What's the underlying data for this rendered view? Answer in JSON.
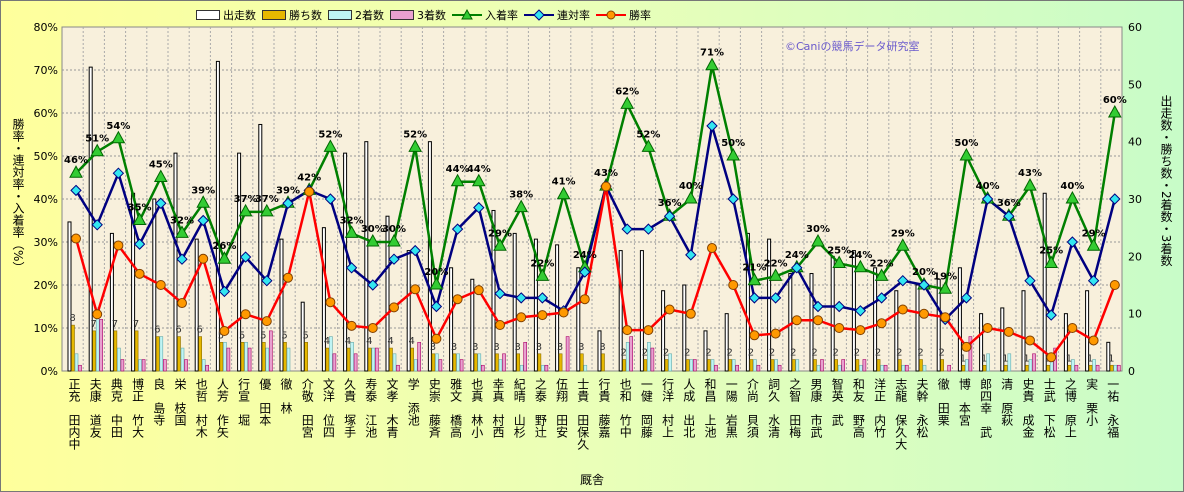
{
  "chart_data": {
    "type": "bar+line",
    "xlabel": "厩舎",
    "ylabel_left": "勝率・連対率・入着率（%）",
    "ylabel_right": "出走数・勝ち数・2着数・3着数",
    "ylim_left": [
      0,
      80
    ],
    "ylim_right": [
      0,
      60
    ],
    "yticks_left": [
      "0%",
      "10%",
      "20%",
      "30%",
      "40%",
      "50%",
      "60%",
      "70%",
      "80%"
    ],
    "yticks_right": [
      "0",
      "10",
      "20",
      "30",
      "40",
      "50",
      "60"
    ],
    "legend": [
      "出走数",
      "勝ち数",
      "2着数",
      "3着数",
      "入着率",
      "連対率",
      "勝率"
    ],
    "legend_position": "top",
    "grid": true,
    "annotation": "©Caniの競馬データ研究室",
    "categories": [
      "中内田 充正",
      "友道 康夫",
      "田中 克典",
      "大竹 正博",
      "寺島 良",
      "国枝 栄",
      "木村 哲也",
      "矢作 芳人",
      "堀 宣行",
      "本田 優",
      "林 徹",
      "宮田 敬介",
      "四位 洋文",
      "手塚 貴久",
      "池江 泰寿",
      "青木 孝文",
      "池添 学",
      "斉藤 崇史",
      "高橋 文雅",
      "小林 真也",
      "西村 真幸",
      "杉山 晴紀",
      "辻野 泰之",
      "安田 翔伍",
      "久保田 貴士",
      "嘉藤 貴行",
      "中竹 和也",
      "藤岡 健一",
      "上村 洋行",
      "北出 成人",
      "池上 昌和",
      "黒岩 陽一",
      "須貝 尚介",
      "清水 久詞",
      "梅田 智之",
      "武市 康男",
      "武 英智",
      "高野 友和",
      "竹内 正洋",
      "大久保 龍志",
      "松永 幹夫",
      "栗田 徹",
      "宮本 博",
      "武 幸四郎",
      "萩原 清",
      "金成 貴史",
      "松下 武士",
      "上原 博之",
      "小栗 実",
      "福永 祐一"
    ],
    "series": [
      {
        "name": "出走数",
        "axis": "right",
        "type": "bar",
        "color": "#ffffff",
        "values": [
          26,
          53,
          24,
          31,
          30,
          38,
          23,
          54,
          38,
          43,
          23,
          12,
          25,
          38,
          40,
          27,
          21,
          40,
          18,
          16,
          28,
          24,
          23,
          22,
          18,
          7,
          21,
          21,
          14,
          15,
          7,
          10,
          24,
          23,
          17,
          17,
          20,
          21,
          18,
          14,
          15,
          16,
          18,
          10,
          11,
          14,
          31,
          10,
          14,
          5
        ]
      },
      {
        "name": "勝ち数",
        "axis": "right",
        "type": "bar",
        "color": "#e6b800",
        "values": [
          8,
          7,
          7,
          7,
          6,
          6,
          6,
          5,
          5,
          5,
          5,
          5,
          4,
          4,
          4,
          4,
          4,
          3,
          3,
          3,
          3,
          3,
          3,
          3,
          3,
          3,
          2,
          2,
          2,
          2,
          2,
          2,
          2,
          2,
          2,
          2,
          2,
          2,
          2,
          2,
          2,
          2,
          1,
          1,
          1,
          1,
          1,
          1,
          1,
          1
        ]
      },
      {
        "name": "2着数",
        "axis": "right",
        "type": "bar",
        "color": "#bff4f4",
        "values": [
          3,
          11,
          4,
          2,
          6,
          4,
          2,
          5,
          5,
          4,
          4,
          0,
          6,
          5,
          4,
          3,
          2,
          3,
          3,
          3,
          2,
          1,
          1,
          0,
          1,
          0,
          5,
          5,
          3,
          2,
          2,
          2,
          2,
          2,
          2,
          1,
          1,
          1,
          1,
          1,
          1,
          0,
          2,
          3,
          3,
          2,
          3,
          2,
          2,
          1
        ]
      },
      {
        "name": "3着数",
        "axis": "right",
        "type": "bar",
        "color": "#e8a0d0",
        "values": [
          1,
          9,
          2,
          2,
          2,
          2,
          1,
          4,
          4,
          7,
          0,
          0,
          3,
          3,
          4,
          1,
          5,
          2,
          2,
          1,
          3,
          5,
          1,
          6,
          0,
          0,
          6,
          4,
          0,
          2,
          1,
          1,
          1,
          1,
          0,
          2,
          2,
          2,
          1,
          1,
          0,
          1,
          6,
          0,
          0,
          3,
          4,
          1,
          1,
          1
        ]
      },
      {
        "name": "入着率",
        "axis": "left",
        "type": "line",
        "color": "#008000",
        "values": [
          46,
          51,
          54,
          35,
          45,
          32,
          39,
          26,
          37,
          37,
          39,
          42,
          52,
          32,
          30,
          30,
          52,
          20,
          44,
          44,
          29,
          38,
          22,
          41,
          24,
          43,
          62,
          52,
          36,
          40,
          71,
          50,
          21,
          22,
          24,
          30,
          25,
          24,
          22,
          29,
          20,
          19,
          50,
          40,
          36,
          43,
          25,
          40,
          29,
          60
        ]
      },
      {
        "name": "連対率",
        "axis": "left",
        "type": "line",
        "color": "#000080",
        "values": [
          42,
          34,
          46,
          29.5,
          39,
          26,
          35,
          18.5,
          26.5,
          21,
          39,
          42,
          40,
          24,
          20,
          26,
          28,
          15,
          33,
          38,
          18,
          17,
          17,
          14,
          23,
          43,
          33,
          33,
          36,
          27,
          57,
          40,
          17,
          17,
          24,
          15,
          15,
          14,
          17,
          21,
          20,
          12,
          17,
          40,
          36,
          21,
          13,
          30,
          21,
          40
        ]
      },
      {
        "name": "勝率",
        "axis": "left",
        "type": "line",
        "color": "#ff0000",
        "values": [
          30.8,
          13.2,
          29.2,
          22.6,
          20,
          15.8,
          26.1,
          9.3,
          13.2,
          11.6,
          21.7,
          41.7,
          16,
          10.5,
          10,
          14.8,
          19,
          7.5,
          16.7,
          18.8,
          10.7,
          12.5,
          13,
          13.6,
          16.7,
          42.9,
          9.5,
          9.5,
          14.3,
          13.3,
          28.6,
          20,
          8.3,
          8.7,
          11.8,
          11.8,
          10,
          9.5,
          11.1,
          14.3,
          13.3,
          12.5,
          5.6,
          10,
          9.1,
          7.1,
          3.2,
          10,
          7.1,
          20
        ]
      }
    ]
  }
}
